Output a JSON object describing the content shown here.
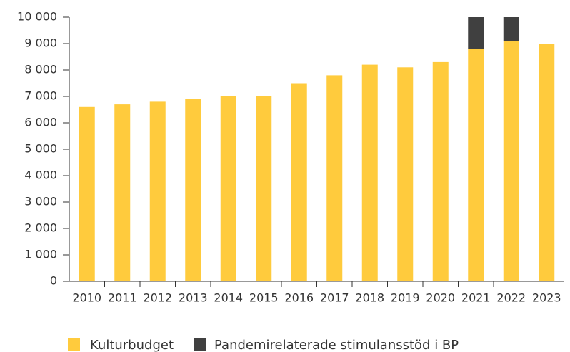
{
  "chart_data": {
    "type": "bar",
    "stacked": true,
    "categories": [
      "2010",
      "2011",
      "2012",
      "2013",
      "2014",
      "2015",
      "2016",
      "2017",
      "2018",
      "2019",
      "2020",
      "2021",
      "2022",
      "2023"
    ],
    "series": [
      {
        "name": "Kulturbudget",
        "color": "#ffcb3d",
        "values": [
          6600,
          6700,
          6800,
          6900,
          7000,
          7000,
          7500,
          7800,
          8200,
          8100,
          8300,
          8800,
          9100,
          9000
        ]
      },
      {
        "name": "Pandemirelaterade stimulansstöd i BP",
        "color": "#404040",
        "values": [
          null,
          null,
          null,
          null,
          null,
          null,
          null,
          null,
          null,
          null,
          null,
          1200,
          900,
          null
        ]
      }
    ],
    "ylim": [
      0,
      10000
    ],
    "yticks": [
      0,
      {
        "value": 1000,
        "label": "1 000"
      },
      {
        "value": 2000,
        "label": "2 000"
      },
      {
        "value": 3000,
        "label": "3 000"
      },
      {
        "value": 4000,
        "label": "4 000"
      },
      {
        "value": 5000,
        "label": "5 000"
      },
      {
        "value": 6000,
        "label": "6 000"
      },
      {
        "value": 7000,
        "label": "7 000"
      },
      {
        "value": 8000,
        "label": "8 000"
      },
      {
        "value": 9000,
        "label": "9 000"
      },
      {
        "value": 10000,
        "label": "10 000"
      }
    ],
    "legend": "bottom"
  }
}
